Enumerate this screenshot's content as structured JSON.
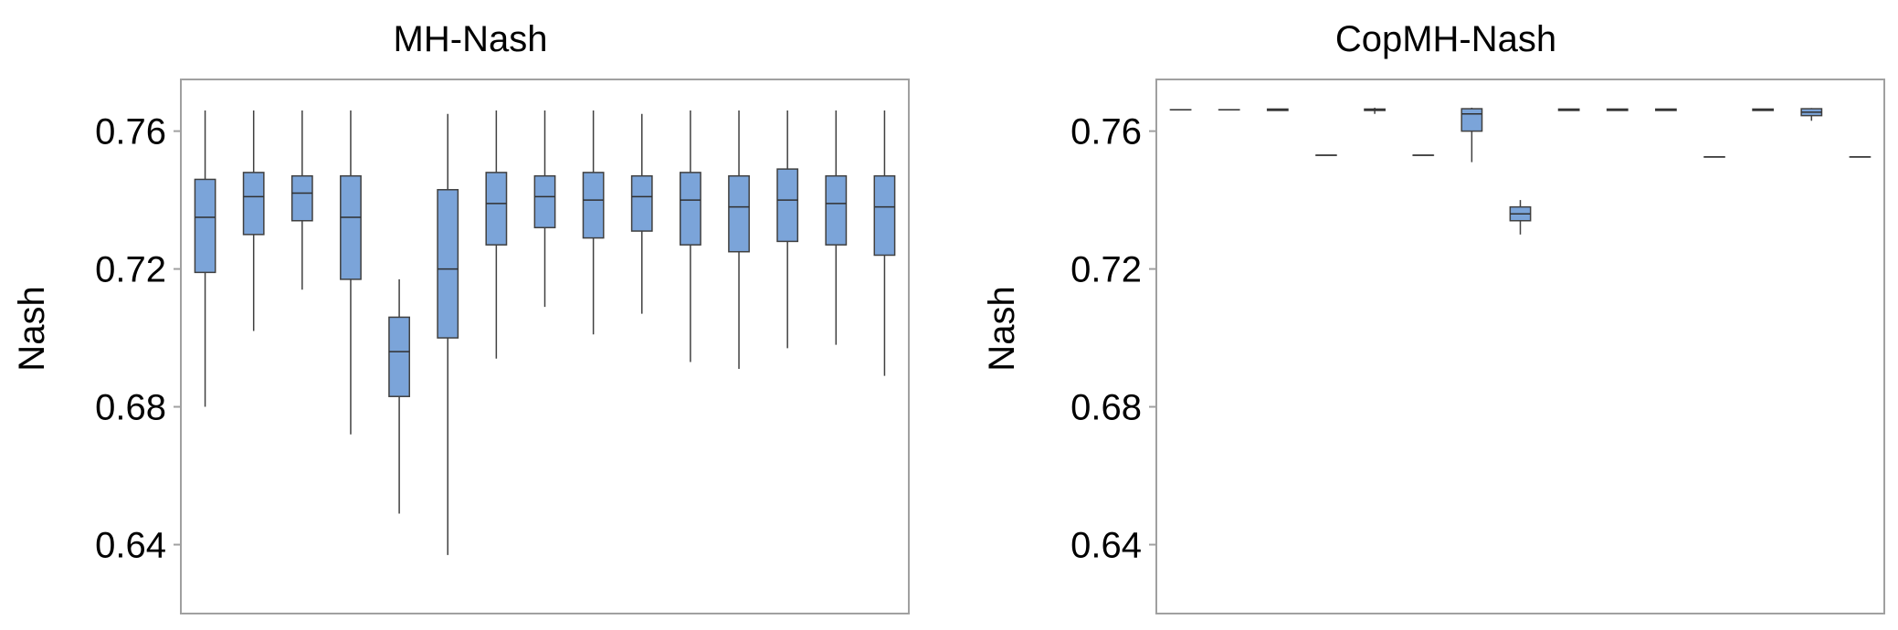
{
  "colors": {
    "box_fill": "#7BA4D9",
    "box_stroke": "#404040",
    "frame": "#a0a0a0"
  },
  "chart_data": [
    {
      "type": "boxplot",
      "title": "MH-Nash",
      "ylabel": "Nash",
      "ylim": [
        0.62,
        0.775
      ],
      "yticks": [
        0.64,
        0.68,
        0.72,
        0.76
      ],
      "ytick_labels": [
        "0.64",
        "0.68",
        "0.72",
        "0.76"
      ],
      "boxes": [
        {
          "min": 0.68,
          "q1": 0.719,
          "median": 0.735,
          "q3": 0.746,
          "max": 0.766
        },
        {
          "min": 0.702,
          "q1": 0.73,
          "median": 0.741,
          "q3": 0.748,
          "max": 0.766
        },
        {
          "min": 0.714,
          "q1": 0.734,
          "median": 0.742,
          "q3": 0.747,
          "max": 0.766
        },
        {
          "min": 0.672,
          "q1": 0.717,
          "median": 0.735,
          "q3": 0.747,
          "max": 0.766
        },
        {
          "min": 0.649,
          "q1": 0.683,
          "median": 0.696,
          "q3": 0.706,
          "max": 0.717
        },
        {
          "min": 0.637,
          "q1": 0.7,
          "median": 0.72,
          "q3": 0.743,
          "max": 0.765
        },
        {
          "min": 0.694,
          "q1": 0.727,
          "median": 0.739,
          "q3": 0.748,
          "max": 0.766
        },
        {
          "min": 0.709,
          "q1": 0.732,
          "median": 0.741,
          "q3": 0.747,
          "max": 0.766
        },
        {
          "min": 0.701,
          "q1": 0.729,
          "median": 0.74,
          "q3": 0.748,
          "max": 0.766
        },
        {
          "min": 0.707,
          "q1": 0.731,
          "median": 0.741,
          "q3": 0.747,
          "max": 0.765
        },
        {
          "min": 0.693,
          "q1": 0.727,
          "median": 0.74,
          "q3": 0.748,
          "max": 0.766
        },
        {
          "min": 0.691,
          "q1": 0.725,
          "median": 0.738,
          "q3": 0.747,
          "max": 0.766
        },
        {
          "min": 0.697,
          "q1": 0.728,
          "median": 0.74,
          "q3": 0.749,
          "max": 0.766
        },
        {
          "min": 0.698,
          "q1": 0.727,
          "median": 0.739,
          "q3": 0.747,
          "max": 0.766
        },
        {
          "min": 0.689,
          "q1": 0.724,
          "median": 0.738,
          "q3": 0.747,
          "max": 0.766
        }
      ]
    },
    {
      "type": "boxplot",
      "title": "CopMH-Nash",
      "ylabel": "Nash",
      "ylim": [
        0.62,
        0.775
      ],
      "yticks": [
        0.64,
        0.68,
        0.72,
        0.76
      ],
      "ytick_labels": [
        "0.64",
        "0.68",
        "0.72",
        "0.76"
      ],
      "boxes": [
        {
          "min": 0.7662,
          "q1": 0.7662,
          "median": 0.7662,
          "q3": 0.7662,
          "max": 0.7662
        },
        {
          "min": 0.7662,
          "q1": 0.7662,
          "median": 0.7662,
          "q3": 0.7662,
          "max": 0.7662
        },
        {
          "min": 0.766,
          "q1": 0.766,
          "median": 0.7662,
          "q3": 0.7664,
          "max": 0.7664
        },
        {
          "min": 0.753,
          "q1": 0.753,
          "median": 0.753,
          "q3": 0.753,
          "max": 0.753
        },
        {
          "min": 0.765,
          "q1": 0.766,
          "median": 0.7662,
          "q3": 0.7664,
          "max": 0.7668
        },
        {
          "min": 0.753,
          "q1": 0.753,
          "median": 0.753,
          "q3": 0.753,
          "max": 0.753
        },
        {
          "min": 0.751,
          "q1": 0.76,
          "median": 0.765,
          "q3": 0.7665,
          "max": 0.7668
        },
        {
          "min": 0.73,
          "q1": 0.734,
          "median": 0.736,
          "q3": 0.738,
          "max": 0.74
        },
        {
          "min": 0.766,
          "q1": 0.766,
          "median": 0.7662,
          "q3": 0.7664,
          "max": 0.7664
        },
        {
          "min": 0.766,
          "q1": 0.766,
          "median": 0.7662,
          "q3": 0.7664,
          "max": 0.7664
        },
        {
          "min": 0.766,
          "q1": 0.766,
          "median": 0.7662,
          "q3": 0.7664,
          "max": 0.7664
        },
        {
          "min": 0.7525,
          "q1": 0.7525,
          "median": 0.7525,
          "q3": 0.7525,
          "max": 0.7525
        },
        {
          "min": 0.766,
          "q1": 0.766,
          "median": 0.7662,
          "q3": 0.7664,
          "max": 0.7664
        },
        {
          "min": 0.763,
          "q1": 0.7645,
          "median": 0.7655,
          "q3": 0.7665,
          "max": 0.7667
        },
        {
          "min": 0.7525,
          "q1": 0.7525,
          "median": 0.7525,
          "q3": 0.7525,
          "max": 0.7525
        }
      ]
    }
  ]
}
